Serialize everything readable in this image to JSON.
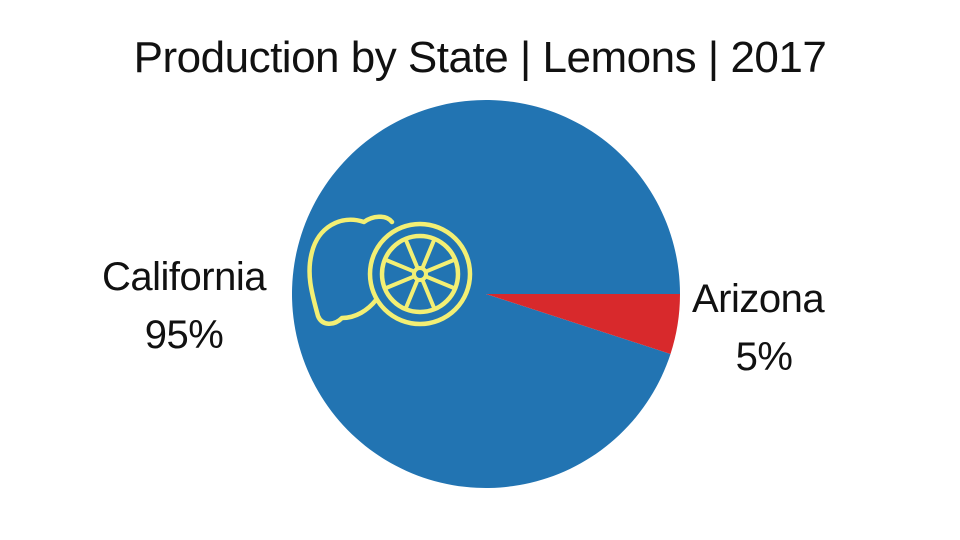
{
  "chart_data": {
    "type": "pie",
    "title": "Production by State | Lemons | 2017",
    "slices": [
      {
        "name": "California",
        "value": 95,
        "value_label": "95%",
        "color": "#2274b2"
      },
      {
        "name": "Arizona",
        "value": 5,
        "value_label": "5%",
        "color": "#d8292c"
      }
    ]
  },
  "decoration": {
    "icon": "lemon-icon",
    "icon_color": "#f3ef74"
  }
}
